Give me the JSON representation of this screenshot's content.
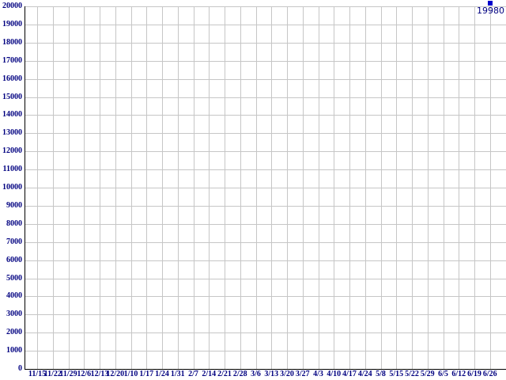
{
  "chart_data": {
    "type": "scatter",
    "title": "",
    "xlabel": "",
    "ylabel": "",
    "x_labels": [
      "11/15",
      "11/22",
      "11/29",
      "12/6",
      "12/13",
      "12/20",
      "1/10",
      "1/17",
      "1/24",
      "1/31",
      "2/7",
      "2/14",
      "2/21",
      "2/28",
      "3/6",
      "3/13",
      "3/20",
      "3/27",
      "4/3",
      "4/10",
      "4/17",
      "4/24",
      "5/8",
      "5/15",
      "5/22",
      "5/29",
      "6/5",
      "6/12",
      "6/19",
      "6/26"
    ],
    "ylim": [
      0,
      20000
    ],
    "ytick_step": 1000,
    "y_tick_labels": [
      "0",
      "1000",
      "2000",
      "3000",
      "4000",
      "5000",
      "6000",
      "7000",
      "8000",
      "9000",
      "10000",
      "11000",
      "12000",
      "13000",
      "14000",
      "15000",
      "16000",
      "17000",
      "18000",
      "19000",
      "20000"
    ],
    "grid": true,
    "legend": "none",
    "series": [
      {
        "name": "series-1",
        "marker": "square",
        "color": "#0000cc",
        "points": [
          {
            "x_label": "6/26",
            "x_index": 29,
            "y": 19980,
            "data_label": "19980"
          }
        ]
      }
    ],
    "colors": {
      "background": "#ffffff",
      "grid": "#c6c6c6",
      "axis": "#000000",
      "tick_label": "#000080",
      "point": "#0000cc",
      "point_label": "#000080"
    }
  }
}
